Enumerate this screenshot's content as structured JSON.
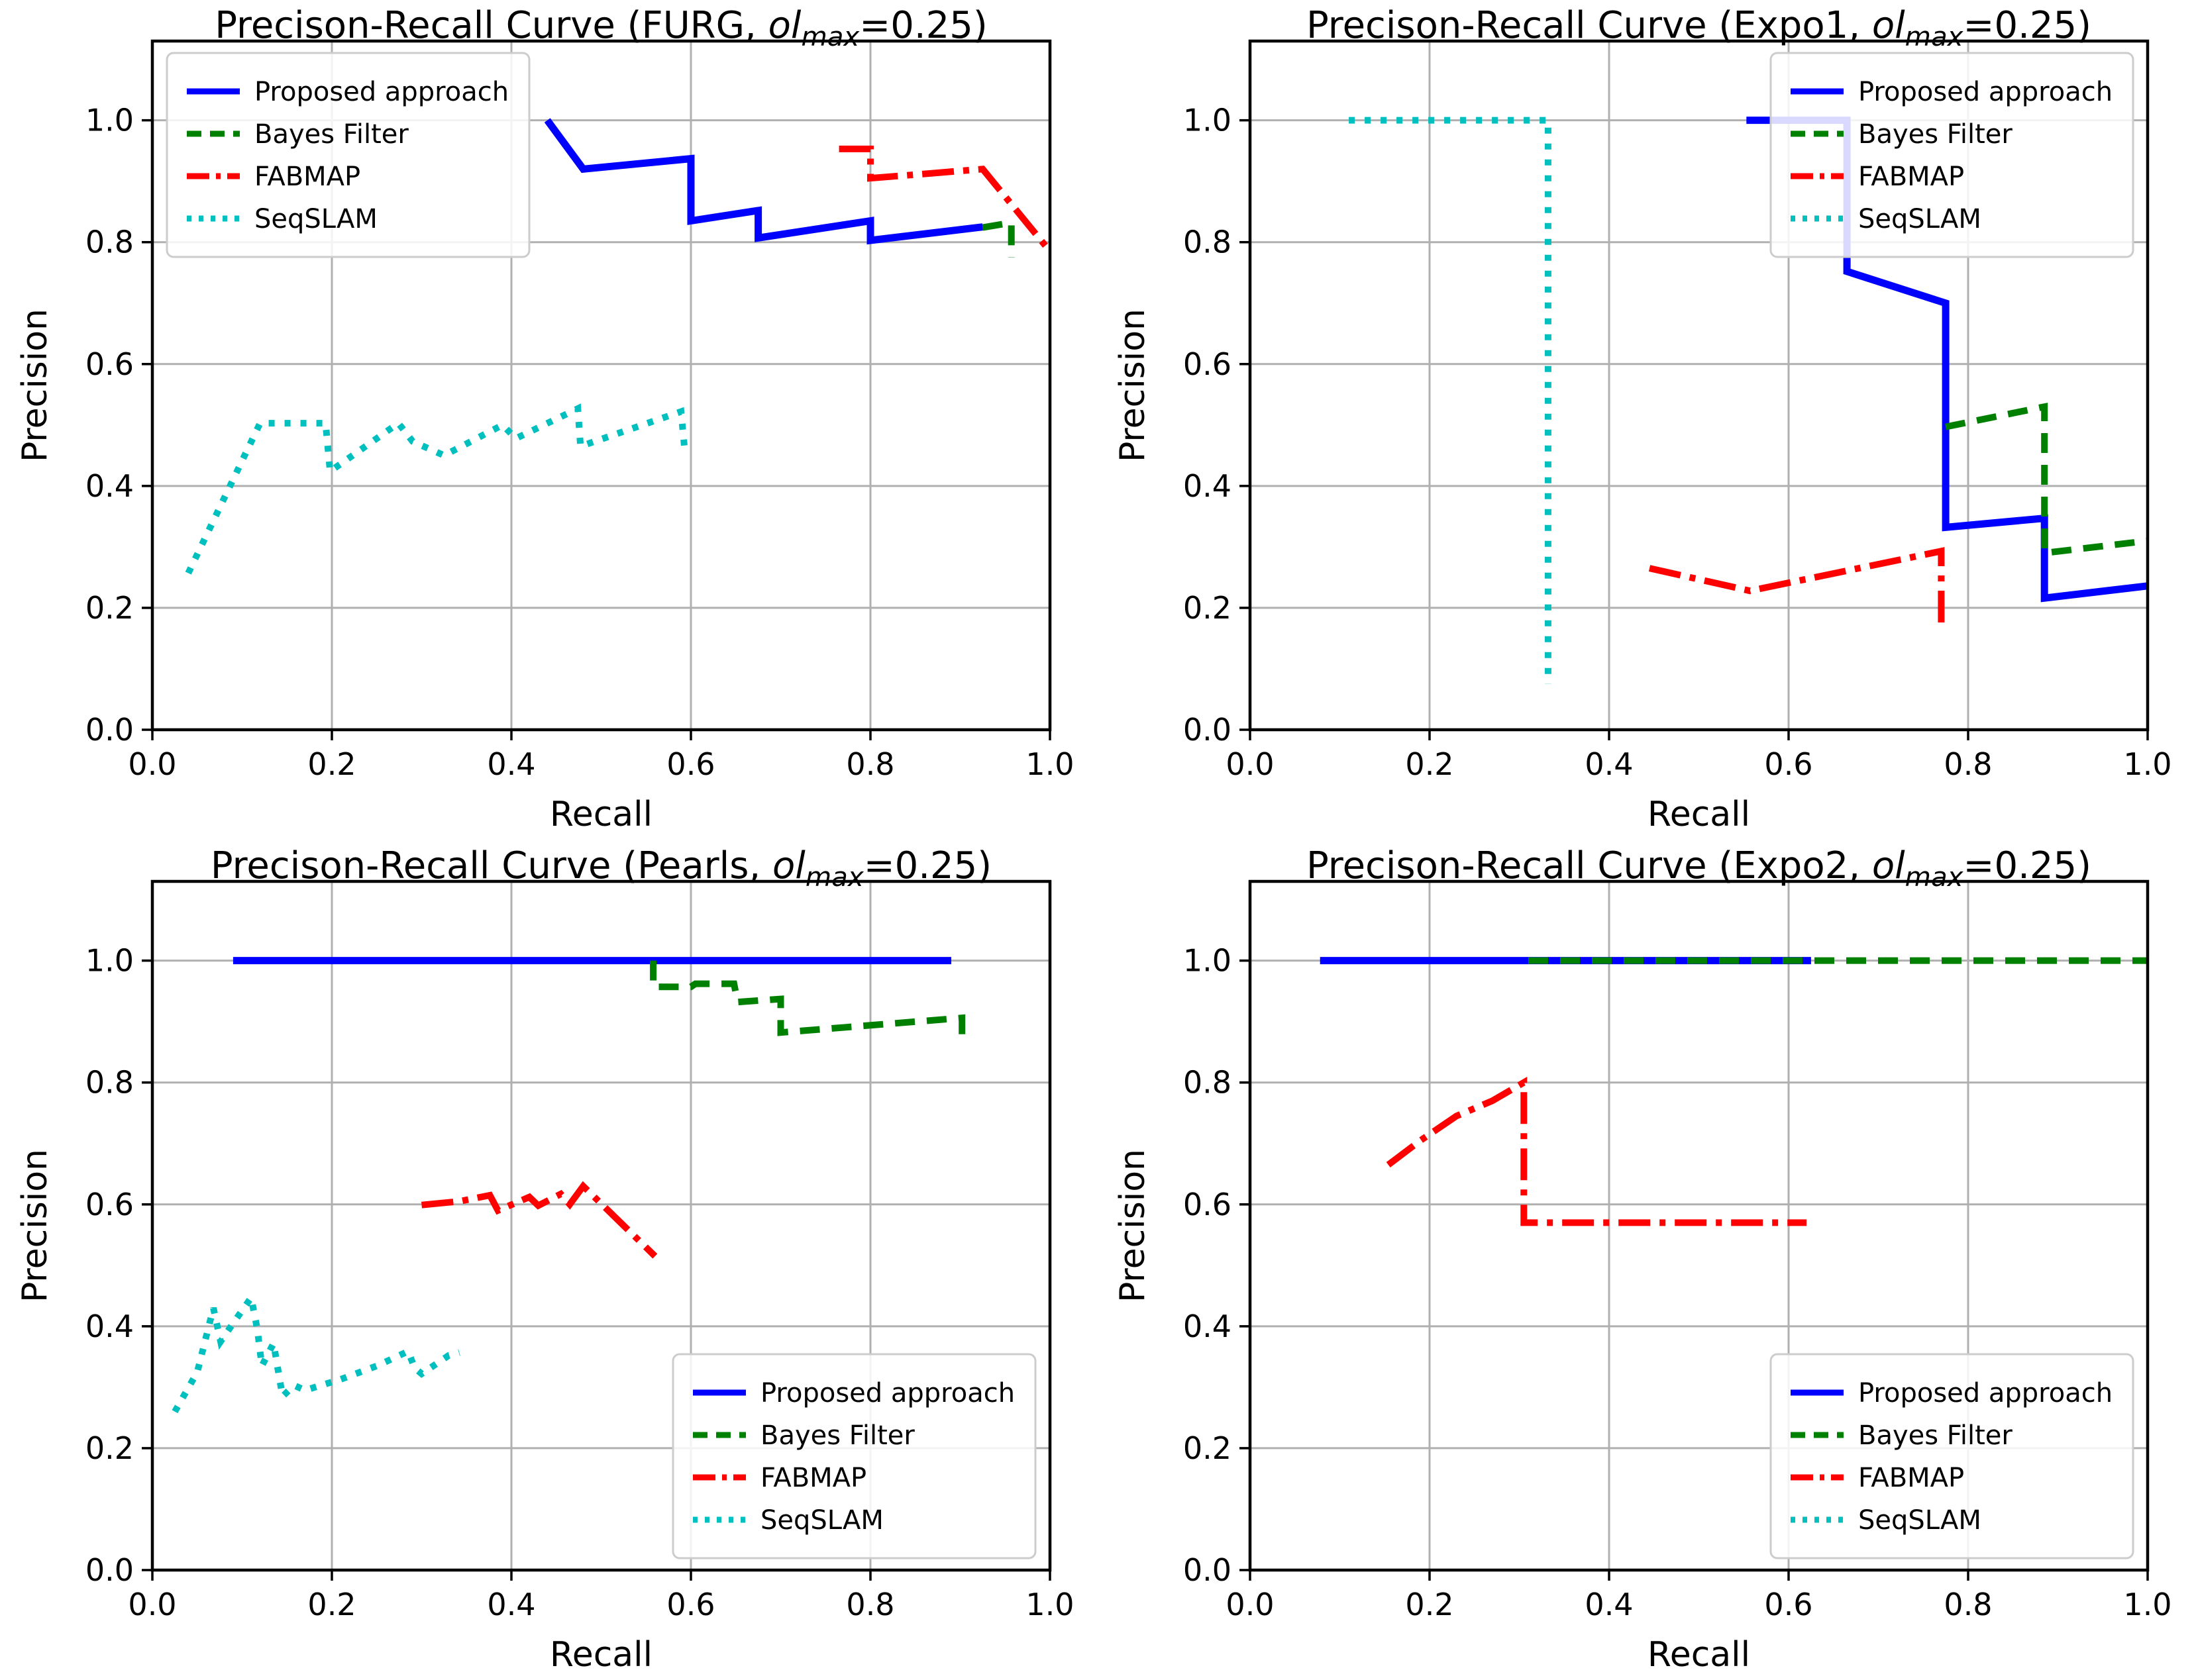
{
  "figure": {
    "xlabel": "Recall",
    "ylabel": "Precision",
    "x_tick_labels": [
      "0.0",
      "0.2",
      "0.4",
      "0.6",
      "0.8",
      "1.0"
    ],
    "y_tick_labels": [
      "0.0",
      "0.2",
      "0.4",
      "0.6",
      "0.8",
      "1.0"
    ]
  },
  "legend": {
    "entries": [
      "Proposed approach",
      "Bayes Filter",
      "FABMAP",
      "SeqSLAM"
    ]
  },
  "colors": {
    "proposed_approach": "#0000ff",
    "bayes_filter": "#008000",
    "fabmap": "#ff0000",
    "seqslam": "#00bfbf",
    "grid": "#b0b0b0",
    "spine": "#000000"
  },
  "chart_data": [
    {
      "type": "line",
      "title": {
        "prefix": "Precison-Recall Curve (",
        "dataset": "FURG",
        "separator": ", ",
        "variable": "ol",
        "subscript": "max",
        "suffix": "=0.25)"
      },
      "xlabel": "Recall",
      "ylabel": "Precision",
      "xlim": [
        0.0,
        1.0
      ],
      "ylim": [
        0.0,
        1.13
      ],
      "grid": true,
      "legend_position": "upper-left",
      "series": [
        {
          "name": "Proposed approach",
          "color": "#0000ff",
          "linestyle": "solid",
          "points": [
            [
              0.44,
              1.0
            ],
            [
              0.48,
              0.92
            ],
            [
              0.6,
              0.937
            ],
            [
              0.6,
              0.835
            ],
            [
              0.675,
              0.852
            ],
            [
              0.675,
              0.807
            ],
            [
              0.8,
              0.835
            ],
            [
              0.8,
              0.803
            ],
            [
              0.925,
              0.825
            ]
          ]
        },
        {
          "name": "Bayes Filter",
          "color": "#008000",
          "linestyle": "dashed",
          "points": [
            [
              0.925,
              0.824
            ],
            [
              0.957,
              0.832
            ],
            [
              0.957,
              0.775
            ]
          ]
        },
        {
          "name": "FABMAP",
          "color": "#ff0000",
          "linestyle": "dashdot",
          "points": [
            [
              0.765,
              0.953
            ],
            [
              0.8,
              0.953
            ],
            [
              0.8,
              0.905
            ],
            [
              0.86,
              0.912
            ],
            [
              0.925,
              0.92
            ],
            [
              1.0,
              0.785
            ]
          ]
        },
        {
          "name": "SeqSLAM",
          "color": "#00bfbf",
          "linestyle": "dotted",
          "points": [
            [
              0.04,
              0.257
            ],
            [
              0.12,
              0.503
            ],
            [
              0.193,
              0.503
            ],
            [
              0.198,
              0.424
            ],
            [
              0.274,
              0.503
            ],
            [
              0.29,
              0.473
            ],
            [
              0.325,
              0.45
            ],
            [
              0.39,
              0.5
            ],
            [
              0.405,
              0.478
            ],
            [
              0.474,
              0.527
            ],
            [
              0.477,
              0.465
            ],
            [
              0.589,
              0.522
            ],
            [
              0.593,
              0.46
            ]
          ]
        }
      ]
    },
    {
      "type": "line",
      "title": {
        "prefix": "Precison-Recall Curve (",
        "dataset": "Expo1",
        "separator": ", ",
        "variable": "ol",
        "subscript": "max",
        "suffix": "=0.25)"
      },
      "xlabel": "Recall",
      "ylabel": "Precision",
      "xlim": [
        0.0,
        1.0
      ],
      "ylim": [
        0.0,
        1.13
      ],
      "grid": true,
      "legend_position": "upper-right",
      "series": [
        {
          "name": "Proposed approach",
          "color": "#0000ff",
          "linestyle": "solid",
          "points": [
            [
              0.553,
              1.0
            ],
            [
              0.665,
              1.0
            ],
            [
              0.665,
              0.752
            ],
            [
              0.775,
              0.7
            ],
            [
              0.775,
              0.332
            ],
            [
              0.885,
              0.347
            ],
            [
              0.885,
              0.216
            ],
            [
              1.0,
              0.236
            ]
          ]
        },
        {
          "name": "Bayes Filter",
          "color": "#008000",
          "linestyle": "dashed",
          "points": [
            [
              0.775,
              0.497
            ],
            [
              0.885,
              0.53
            ],
            [
              0.885,
              0.29
            ],
            [
              1.0,
              0.31
            ]
          ]
        },
        {
          "name": "FABMAP",
          "color": "#ff0000",
          "linestyle": "dashdot",
          "points": [
            [
              0.445,
              0.265
            ],
            [
              0.557,
              0.228
            ],
            [
              0.77,
              0.293
            ],
            [
              0.77,
              0.17
            ]
          ]
        },
        {
          "name": "SeqSLAM",
          "color": "#00bfbf",
          "linestyle": "dotted",
          "points": [
            [
              0.11,
              1.0
            ],
            [
              0.332,
              1.0
            ],
            [
              0.332,
              0.075
            ]
          ]
        }
      ]
    },
    {
      "type": "line",
      "title": {
        "prefix": "Precison-Recall Curve (",
        "dataset": "Pearls",
        "separator": ", ",
        "variable": "ol",
        "subscript": "max",
        "suffix": "=0.25)"
      },
      "xlabel": "Recall",
      "ylabel": "Precision",
      "xlim": [
        0.0,
        1.0
      ],
      "ylim": [
        0.0,
        1.13
      ],
      "grid": true,
      "legend_position": "lower-right",
      "series": [
        {
          "name": "Proposed approach",
          "color": "#0000ff",
          "linestyle": "solid",
          "points": [
            [
              0.09,
              1.0
            ],
            [
              0.89,
              1.0
            ]
          ]
        },
        {
          "name": "Bayes Filter",
          "color": "#008000",
          "linestyle": "dashed",
          "points": [
            [
              0.558,
              1.0
            ],
            [
              0.558,
              0.957
            ],
            [
              0.6,
              0.957
            ],
            [
              0.605,
              0.962
            ],
            [
              0.648,
              0.962
            ],
            [
              0.652,
              0.932
            ],
            [
              0.7,
              0.937
            ],
            [
              0.7,
              0.882
            ],
            [
              0.902,
              0.906
            ],
            [
              0.902,
              0.862
            ]
          ]
        },
        {
          "name": "FABMAP",
          "color": "#ff0000",
          "linestyle": "dashdot",
          "points": [
            [
              0.3,
              0.599
            ],
            [
              0.342,
              0.605
            ],
            [
              0.376,
              0.615
            ],
            [
              0.385,
              0.59
            ],
            [
              0.42,
              0.612
            ],
            [
              0.43,
              0.598
            ],
            [
              0.455,
              0.617
            ],
            [
              0.465,
              0.6
            ],
            [
              0.48,
              0.63
            ],
            [
              0.56,
              0.515
            ]
          ]
        },
        {
          "name": "SeqSLAM",
          "color": "#00bfbf",
          "linestyle": "dotted",
          "points": [
            [
              0.025,
              0.26
            ],
            [
              0.05,
              0.325
            ],
            [
              0.068,
              0.43
            ],
            [
              0.076,
              0.375
            ],
            [
              0.09,
              0.405
            ],
            [
              0.11,
              0.447
            ],
            [
              0.117,
              0.395
            ],
            [
              0.122,
              0.335
            ],
            [
              0.135,
              0.372
            ],
            [
              0.145,
              0.285
            ],
            [
              0.158,
              0.303
            ],
            [
              0.17,
              0.295
            ],
            [
              0.21,
              0.313
            ],
            [
              0.25,
              0.335
            ],
            [
              0.285,
              0.359
            ],
            [
              0.292,
              0.332
            ],
            [
              0.3,
              0.322
            ],
            [
              0.33,
              0.352
            ],
            [
              0.342,
              0.357
            ]
          ]
        }
      ]
    },
    {
      "type": "line",
      "title": {
        "prefix": "Precison-Recall Curve (",
        "dataset": "Expo2",
        "separator": ", ",
        "variable": "ol",
        "subscript": "max",
        "suffix": "=0.25)"
      },
      "xlabel": "Recall",
      "ylabel": "Precision",
      "xlim": [
        0.0,
        1.0
      ],
      "ylim": [
        0.0,
        1.13
      ],
      "grid": true,
      "legend_position": "lower-right",
      "series": [
        {
          "name": "Proposed approach",
          "color": "#0000ff",
          "linestyle": "solid",
          "points": [
            [
              0.078,
              1.0
            ],
            [
              0.625,
              1.0
            ]
          ]
        },
        {
          "name": "Bayes Filter",
          "color": "#008000",
          "linestyle": "dashed",
          "points": [
            [
              0.31,
              1.0
            ],
            [
              1.0,
              1.0
            ]
          ]
        },
        {
          "name": "FABMAP",
          "color": "#ff0000",
          "linestyle": "dashdot",
          "points": [
            [
              0.154,
              0.665
            ],
            [
              0.19,
              0.705
            ],
            [
              0.23,
              0.745
            ],
            [
              0.27,
              0.77
            ],
            [
              0.305,
              0.8
            ],
            [
              0.305,
              0.57
            ],
            [
              0.62,
              0.57
            ]
          ]
        },
        {
          "name": "SeqSLAM",
          "color": "#00bfbf",
          "linestyle": "dotted",
          "points": []
        }
      ]
    }
  ]
}
